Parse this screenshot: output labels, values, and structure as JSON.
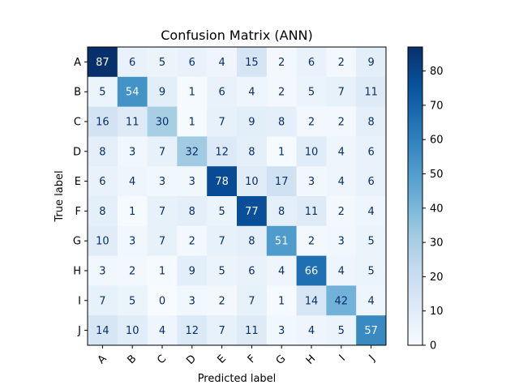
{
  "chart_data": {
    "type": "heatmap",
    "title": "Confusion Matrix (ANN)",
    "xlabel": "Predicted label",
    "ylabel": "True label",
    "x_categories": [
      "A",
      "B",
      "C",
      "D",
      "E",
      "F",
      "G",
      "H",
      "I",
      "J"
    ],
    "y_categories": [
      "A",
      "B",
      "C",
      "D",
      "E",
      "F",
      "G",
      "H",
      "I",
      "J"
    ],
    "values": [
      [
        87,
        6,
        5,
        6,
        4,
        15,
        2,
        6,
        2,
        9
      ],
      [
        5,
        54,
        9,
        1,
        6,
        4,
        2,
        5,
        7,
        11
      ],
      [
        16,
        11,
        30,
        1,
        7,
        9,
        8,
        2,
        2,
        8
      ],
      [
        8,
        3,
        7,
        32,
        12,
        8,
        1,
        10,
        4,
        6
      ],
      [
        6,
        4,
        3,
        3,
        78,
        10,
        17,
        3,
        4,
        6
      ],
      [
        8,
        1,
        7,
        8,
        5,
        77,
        8,
        11,
        2,
        4
      ],
      [
        10,
        3,
        7,
        2,
        7,
        8,
        51,
        2,
        3,
        5
      ],
      [
        3,
        2,
        1,
        9,
        5,
        6,
        4,
        66,
        4,
        5
      ],
      [
        7,
        5,
        0,
        3,
        2,
        7,
        1,
        14,
        42,
        4
      ],
      [
        14,
        10,
        4,
        12,
        7,
        11,
        3,
        4,
        5,
        57
      ]
    ],
    "colorbar": {
      "colormap": "Blues",
      "range": [
        0,
        87
      ],
      "ticks": [
        0,
        10,
        20,
        30,
        40,
        50,
        60,
        70,
        80
      ]
    },
    "grid": false,
    "legend": "none"
  }
}
